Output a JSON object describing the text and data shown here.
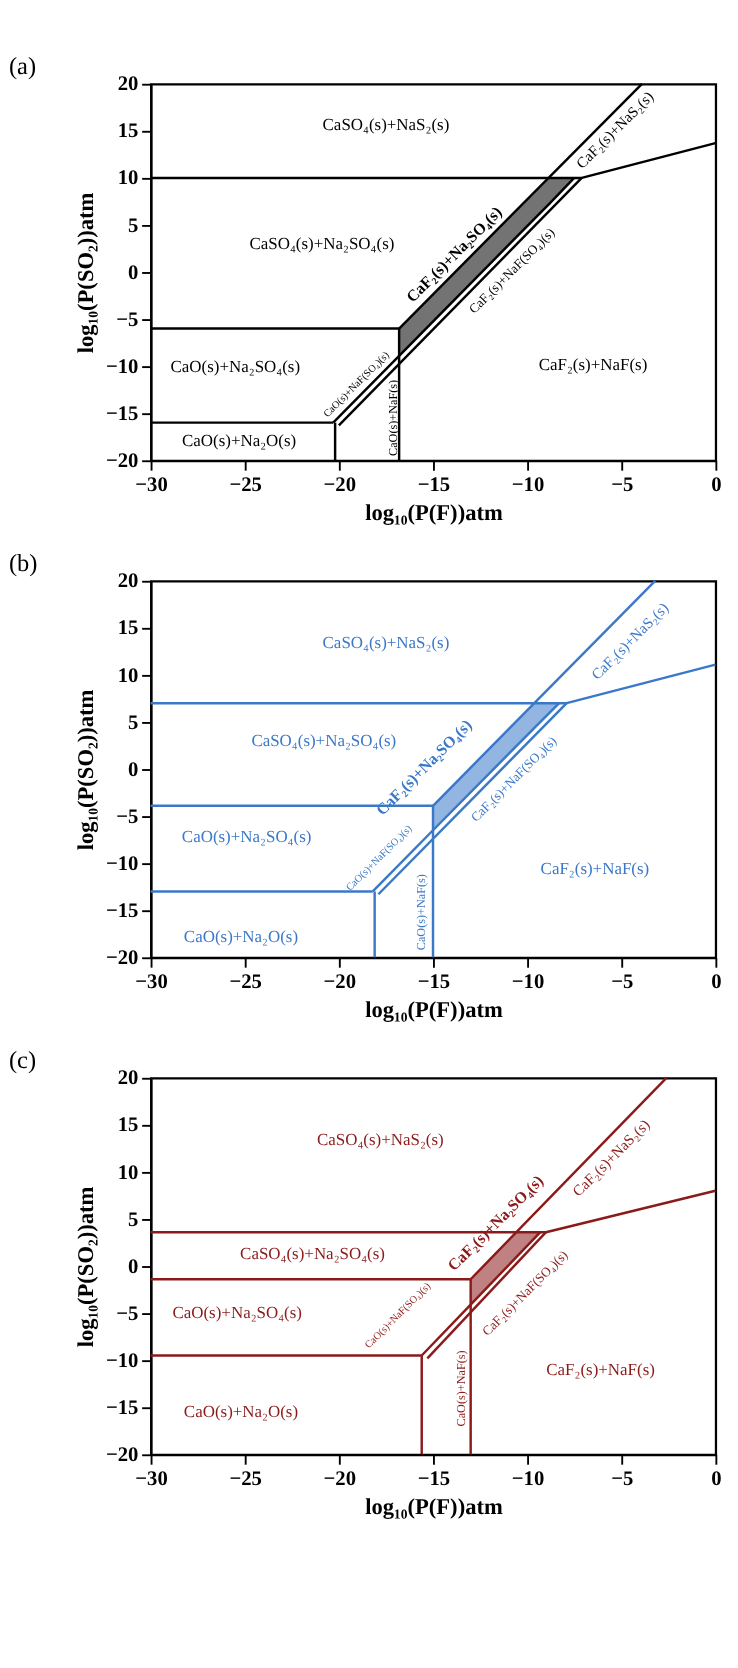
{
  "chart_data": [
    {
      "type": "line",
      "title": "(a)",
      "xlabel": "log₁₀(P(F))atm",
      "ylabel": "log₁₀(P(SO₂))atm",
      "xlim": [
        -30,
        0
      ],
      "ylim": [
        -20,
        20
      ],
      "xticks": [
        -30,
        -25,
        -20,
        -15,
        -10,
        -5,
        0
      ],
      "yticks": [
        -20,
        -15,
        -10,
        -5,
        0,
        5,
        10,
        15,
        20
      ],
      "line_style": "solid",
      "series": [
        {
          "color": "#000000",
          "x": [
            -30,
            -7.1,
            0
          ],
          "values": [
            10,
            10,
            13.7
          ]
        },
        {
          "color": "#000000",
          "x": [
            -16.8,
            -3.9
          ],
          "values": [
            -6,
            20
          ]
        },
        {
          "color": "#000000",
          "x": [
            -20.3,
            -16.8,
            -8.8,
            -7.5
          ],
          "values": [
            -16,
            -8.9,
            7.3,
            10
          ],
          "lower": [
            null,
            -8.9,
            7.3,
            10
          ],
          "upper": [
            null,
            -6,
            10,
            10
          ]
        },
        {
          "color": "#000000",
          "x": [
            -20.0,
            -7.1
          ],
          "values": [
            -16.3,
            10
          ]
        },
        {
          "color": "#000000",
          "x": [
            -30,
            -16.8
          ],
          "values": [
            -6,
            -6
          ]
        },
        {
          "color": "#000000",
          "x": [
            -16.8,
            -16.8
          ],
          "values": [
            -6,
            -20
          ]
        },
        {
          "color": "#000000",
          "x": [
            -30,
            -20.3
          ],
          "values": [
            -16,
            -16
          ]
        },
        {
          "color": "#000000",
          "x": [
            -20.2,
            -20.2
          ],
          "values": [
            -16,
            -20
          ]
        }
      ],
      "annotations": [
        "CaSO₄(s)+NaS₂(s)",
        "CaSO₄(s)+Na₂SO₄(s)",
        "CaO(s)+Na₂SO₄(s)",
        "CaO(s)+Na₂O(s)",
        "CaF₂(s)+NaF(s)",
        "CaF₂(s)+Na₂SO₄(s)",
        "CaF₂(s)+NaF(SO₄)(s)",
        "CaF₂(s)+NaS₂(s)",
        "CaO(s)+NaF(SO₄)(s)",
        "CaO(s)+NaF(s)"
      ]
    },
    {
      "type": "line",
      "title": "(b)",
      "xlabel": "log₁₀(P(F))atm",
      "ylabel": "log₁₀(P(SO₂))atm",
      "xlim": [
        -30,
        0
      ],
      "ylim": [
        -20,
        20
      ],
      "xticks": [
        -30,
        -25,
        -20,
        -15,
        -10,
        -5,
        0
      ],
      "yticks": [
        -20,
        -15,
        -10,
        -5,
        0,
        5,
        10,
        15,
        20
      ],
      "line_style": "solid",
      "series": [
        {
          "color": "#3a78c8",
          "x": [
            -30,
            -7.9,
            0
          ],
          "values": [
            7,
            7,
            11.1
          ]
        },
        {
          "color": "#3a78c8",
          "x": [
            -15,
            -3.2
          ],
          "values": [
            -3.9,
            20
          ]
        },
        {
          "color": "#3a78c8",
          "x": [
            -18.2,
            -15,
            -9.6,
            -8.3
          ],
          "values": [
            -13,
            -6.5,
            4.4,
            7
          ],
          "lower": [
            null,
            -6.5,
            4.4,
            7
          ],
          "upper": [
            null,
            -3.9,
            7,
            7
          ]
        },
        {
          "color": "#3a78c8",
          "x": [
            -17.9,
            -7.9
          ],
          "values": [
            -13.3,
            7
          ]
        },
        {
          "color": "#3a78c8",
          "x": [
            -30,
            -15
          ],
          "values": [
            -3.9,
            -3.9
          ]
        },
        {
          "color": "#3a78c8",
          "x": [
            -15,
            -15
          ],
          "values": [
            -3.9,
            -20
          ]
        },
        {
          "color": "#3a78c8",
          "x": [
            -30,
            -18.2
          ],
          "values": [
            -13,
            -13
          ]
        },
        {
          "color": "#3a78c8",
          "x": [
            -18.1,
            -18.1
          ],
          "values": [
            -13,
            -20
          ]
        }
      ],
      "annotations": [
        "CaSO₄(s)+NaS₂(s)",
        "CaSO₄(s)+Na₂SO₄(s)",
        "CaO(s)+Na₂SO₄(s)",
        "CaO(s)+Na₂O(s)",
        "CaF₂(s)+NaF(s)",
        "CaF₂(s)+Na₂SO₄(s)",
        "CaF₂(s)+NaF(SO₄)(s)",
        "CaF₂(s)+NaS₂(s)",
        "CaO(s)+NaF(SO₄)(s)",
        "CaO(s)+NaF(s)"
      ]
    },
    {
      "type": "line",
      "title": "(c)",
      "xlabel": "log₁₀(P(F))atm",
      "ylabel": "log₁₀(P(SO₂))atm",
      "xlim": [
        -30,
        0
      ],
      "ylim": [
        -20,
        20
      ],
      "xticks": [
        -30,
        -25,
        -20,
        -15,
        -10,
        -5,
        0
      ],
      "yticks": [
        -20,
        -15,
        -10,
        -5,
        0,
        5,
        10,
        15,
        20
      ],
      "line_style": "solid",
      "series": [
        {
          "color": "#8b1a1a",
          "x": [
            -30,
            -9.0,
            0
          ],
          "values": [
            3.6,
            3.6,
            8
          ]
        },
        {
          "color": "#8b1a1a",
          "x": [
            -13,
            -2.6
          ],
          "values": [
            -1.4,
            20
          ]
        },
        {
          "color": "#8b1a1a",
          "x": [
            -15.6,
            -13,
            -10.6,
            -9.3
          ],
          "values": [
            -9.5,
            -4.1,
            0.9,
            3.6
          ],
          "lower": [
            null,
            -4.1,
            0.9,
            3.6
          ],
          "upper": [
            null,
            -1.4,
            3.6,
            3.6
          ]
        },
        {
          "color": "#8b1a1a",
          "x": [
            -15.3,
            -9.0
          ],
          "values": [
            -9.8,
            3.6
          ]
        },
        {
          "color": "#8b1a1a",
          "x": [
            -30,
            -13
          ],
          "values": [
            -1.4,
            -1.4
          ]
        },
        {
          "color": "#8b1a1a",
          "x": [
            -13,
            -13
          ],
          "values": [
            -1.4,
            -20
          ]
        },
        {
          "color": "#8b1a1a",
          "x": [
            -30,
            -15.6
          ],
          "values": [
            -9.5,
            -9.5
          ]
        },
        {
          "color": "#8b1a1a",
          "x": [
            -15.6,
            -15.6
          ],
          "values": [
            -9.5,
            -20
          ]
        }
      ],
      "annotations": [
        "CaSO₄(s)+NaS₂(s)",
        "CaSO₄(s)+Na₂SO₄(s)",
        "CaO(s)+Na₂SO₄(s)",
        "CaO(s)+Na₂O(s)",
        "CaF₂(s)+NaF(s)",
        "CaF₂(s)+Na₂SO₄(s)",
        "CaF₂(s)+NaF(SO₄)(s)",
        "CaF₂(s)+NaS₂(s)",
        "CaO(s)+NaF(SO₄)(s)",
        "CaO(s)+NaF(s)"
      ]
    }
  ]
}
